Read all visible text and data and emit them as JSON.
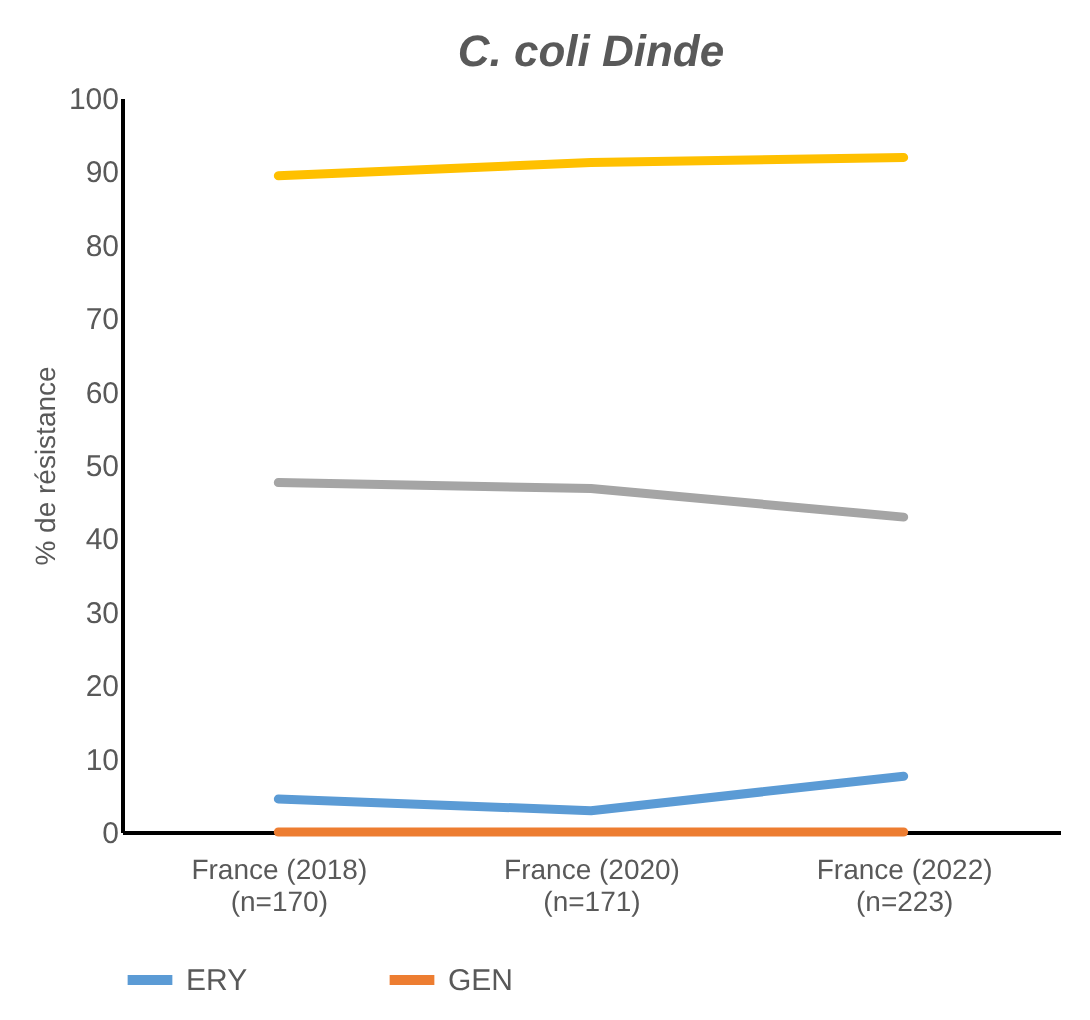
{
  "chart_data": {
    "type": "line",
    "title": "C. coli Dinde",
    "ylabel": "% de résistance",
    "categories": [
      "France (2018)\n(n=170)",
      "France (2020)\n(n=171)",
      "France (2022)\n(n=223)"
    ],
    "series": [
      {
        "name": "ERY",
        "color": "#5b9bd5",
        "values": [
          4.5,
          2.9,
          7.6
        ]
      },
      {
        "name": "GEN",
        "color": "#ed7d31",
        "values": [
          0,
          0,
          0
        ]
      },
      {
        "color": "#a5a5a5",
        "values": [
          47.6,
          46.8,
          42.9
        ]
      },
      {
        "color": "#ffc000",
        "values": [
          89.4,
          91.2,
          91.9
        ]
      }
    ],
    "ylim": [
      0,
      100
    ],
    "yticks": [
      0,
      10,
      20,
      30,
      40,
      50,
      60,
      70,
      80,
      90,
      100
    ],
    "grid": false,
    "legend": "bottom",
    "marker": "none",
    "line_style": "solid"
  }
}
